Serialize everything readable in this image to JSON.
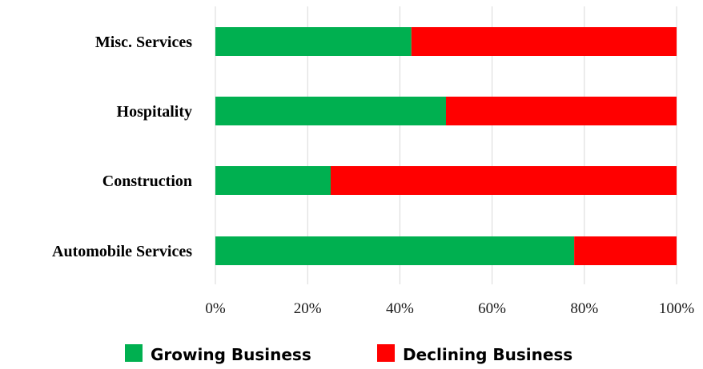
{
  "chart_data": {
    "type": "bar",
    "orientation": "horizontal",
    "stacked": "percent",
    "categories": [
      "Misc. Services",
      "Hospitality",
      "Construction",
      "Automobile Services"
    ],
    "series": [
      {
        "name": "Growing Business",
        "color": "#00b050",
        "values": [
          42.5,
          50,
          25,
          77.8
        ]
      },
      {
        "name": "Declining Business",
        "color": "#ff0000",
        "values": [
          57.5,
          50,
          75,
          22.2
        ]
      }
    ],
    "xticks": [
      "0%",
      "20%",
      "40%",
      "60%",
      "80%",
      "100%"
    ],
    "xlim": [
      0,
      100
    ],
    "grid": true,
    "legend": "bottom"
  }
}
